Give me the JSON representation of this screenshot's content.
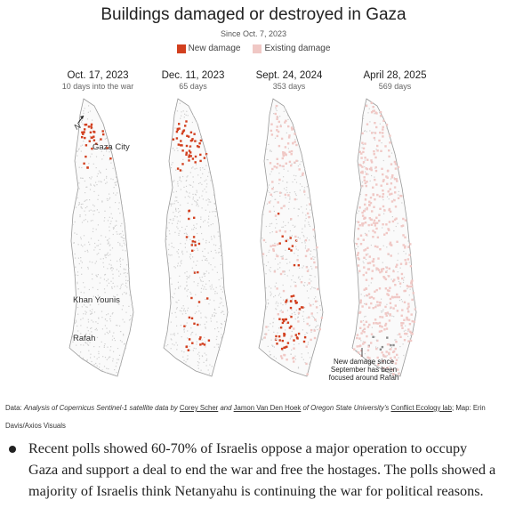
{
  "title": "Buildings damaged or destroyed in Gaza",
  "subtitle": "Since Oct. 7, 2023",
  "legend": {
    "new_label": "New damage",
    "existing_label": "Existing damage",
    "new_color": "#d23f1e",
    "existing_color": "#f0c8c5"
  },
  "panels": [
    {
      "date": "Oct. 17, 2023",
      "days": "10 days into the war"
    },
    {
      "date": "Dec. 11, 2023",
      "days": "65 days"
    },
    {
      "date": "Sept. 24, 2024",
      "days": "353 days"
    },
    {
      "date": "April 28, 2025",
      "days": "569 days"
    }
  ],
  "map_labels": {
    "north": "N",
    "gaza_city": "Gaza City",
    "khan_younis": "Khan Younis",
    "rafah": "Rafah"
  },
  "callout": "New damage since September has been focused around Rafah",
  "source": {
    "data_label": "Data:",
    "text1": "Analysis of Copernicus Sentinel-1 satellite data by",
    "author1": "Corey Scher",
    "and": "and",
    "author2": "Jamon Van Den Hoek",
    "text2": "of Oregon State University's",
    "lab": "Conflict Ecology lab",
    "map_label": "; Map: Erin Davis/Axios Visuals"
  },
  "bullet": "Recent polls showed 60-70% of Israelis oppose a major operation to occupy Gaza and support a deal to end the war and free the hostages. The polls showed a majority of Israelis think Netanyahu is continuing the war for political reasons."
}
